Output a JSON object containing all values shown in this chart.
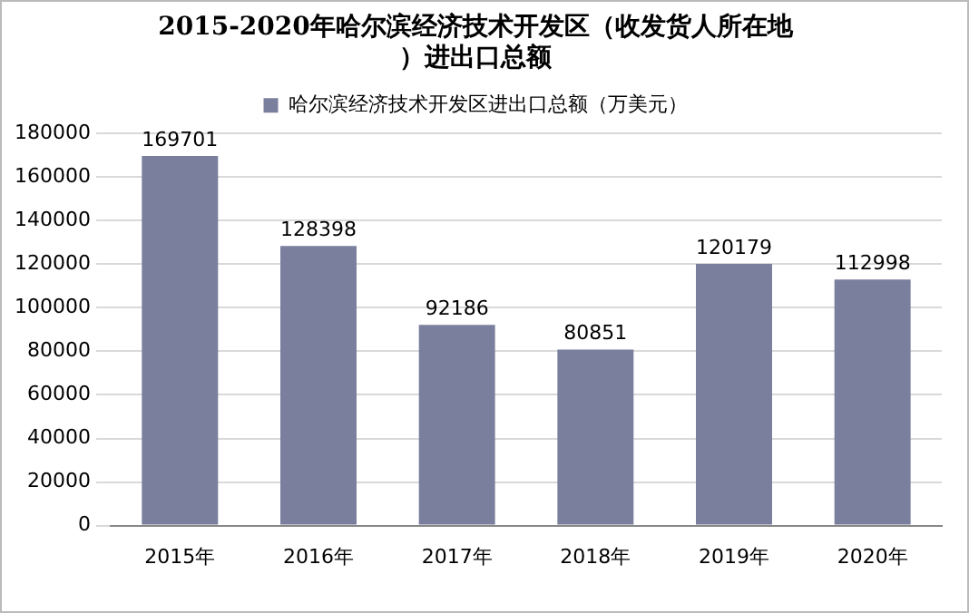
{
  "chart_data": {
    "type": "bar",
    "title": "2015-2020年哈尔滨经济技术开发区（收发货人所在地）进出口总额",
    "categories": [
      "2015年",
      "2016年",
      "2017年",
      "2018年",
      "2019年",
      "2020年"
    ],
    "series": [
      {
        "name": "哈尔滨经济技术开发区进出口总额（万美元）",
        "color": "#7b7f9e",
        "values": [
          169701,
          128398,
          92186,
          80851,
          120179,
          112998
        ]
      }
    ],
    "ylim": [
      0,
      180000
    ],
    "yticks": [
      0,
      20000,
      40000,
      60000,
      80000,
      100000,
      120000,
      140000,
      160000,
      180000
    ],
    "grid": "y",
    "legend": "top",
    "data_labels": true
  }
}
